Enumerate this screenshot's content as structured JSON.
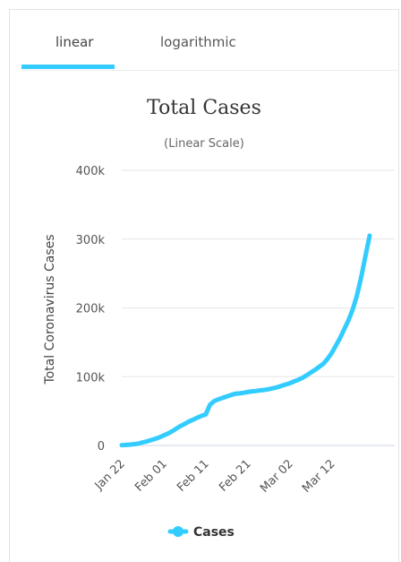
{
  "tabs": [
    {
      "label": "linear",
      "active": true
    },
    {
      "label": "logarithmic",
      "active": false
    }
  ],
  "chart_data": {
    "type": "line",
    "title": "Total Cases",
    "subtitle": "(Linear Scale)",
    "ylabel": "Total Coronavirus Cases",
    "xlabel": "",
    "ylim": [
      0,
      400000
    ],
    "y_ticks": [
      "0",
      "100k",
      "200k",
      "300k",
      "400k"
    ],
    "y_tick_values": [
      0,
      100000,
      200000,
      300000,
      400000
    ],
    "x_ticks": [
      "Jan 22",
      "Feb 01",
      "Feb 11",
      "Feb 21",
      "Mar 02",
      "Mar 12"
    ],
    "x_tick_index": [
      0,
      10,
      20,
      30,
      40,
      50
    ],
    "grid": true,
    "legend_position": "bottom",
    "color": "#33ccff",
    "series": [
      {
        "name": "Cases",
        "x": [
          "Jan 22",
          "Jan 23",
          "Jan 24",
          "Jan 25",
          "Jan 26",
          "Jan 27",
          "Jan 28",
          "Jan 29",
          "Jan 30",
          "Jan 31",
          "Feb 01",
          "Feb 02",
          "Feb 03",
          "Feb 04",
          "Feb 05",
          "Feb 06",
          "Feb 07",
          "Feb 08",
          "Feb 09",
          "Feb 10",
          "Feb 11",
          "Feb 12",
          "Feb 13",
          "Feb 14",
          "Feb 15",
          "Feb 16",
          "Feb 17",
          "Feb 18",
          "Feb 19",
          "Feb 20",
          "Feb 21",
          "Feb 22",
          "Feb 23",
          "Feb 24",
          "Feb 25",
          "Feb 26",
          "Feb 27",
          "Feb 28",
          "Feb 29",
          "Mar 01",
          "Mar 02",
          "Mar 03",
          "Mar 04",
          "Mar 05",
          "Mar 06",
          "Mar 07",
          "Mar 08",
          "Mar 09",
          "Mar 10",
          "Mar 11",
          "Mar 12",
          "Mar 13",
          "Mar 14",
          "Mar 15",
          "Mar 16",
          "Mar 17",
          "Mar 18",
          "Mar 19",
          "Mar 20",
          "Mar 21"
        ],
        "values": [
          580,
          845,
          1317,
          2015,
          2800,
          4581,
          6058,
          7813,
          9823,
          11950,
          14553,
          17391,
          20630,
          24545,
          28266,
          31439,
          34876,
          37552,
          40553,
          43099,
          45134,
          59287,
          64438,
          67100,
          69197,
          71329,
          73332,
          75184,
          75700,
          76677,
          77673,
          78651,
          79205,
          80087,
          80828,
          81820,
          83112,
          84615,
          86604,
          88585,
          90443,
          93016,
          95314,
          98425,
          102050,
          106099,
          109991,
          114381,
          118948,
          126214,
          134576,
          145483,
          156653,
          169593,
          182490,
          198238,
          218822,
          244933,
          275597,
          305036
        ]
      }
    ]
  }
}
